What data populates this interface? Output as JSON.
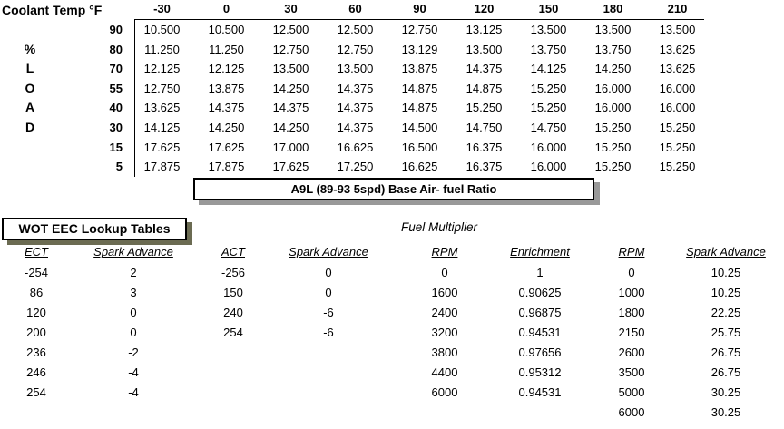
{
  "base_afr": {
    "corner_label": "Coolant Temp °F",
    "col_headers": [
      "-30",
      "0",
      "30",
      "60",
      "90",
      "120",
      "150",
      "180",
      "210"
    ],
    "row_labels": [
      "90",
      "80",
      "70",
      "55",
      "40",
      "30",
      "15",
      "5"
    ],
    "side_letters": [
      "%",
      "L",
      "O",
      "A",
      "D"
    ],
    "rows": [
      [
        "10.500",
        "10.500",
        "12.500",
        "12.500",
        "12.750",
        "13.125",
        "13.500",
        "13.500",
        "13.500"
      ],
      [
        "11.250",
        "11.250",
        "12.750",
        "12.750",
        "13.129",
        "13.500",
        "13.750",
        "13.750",
        "13.625"
      ],
      [
        "12.125",
        "12.125",
        "13.500",
        "13.500",
        "13.875",
        "14.375",
        "14.125",
        "14.250",
        "13.625"
      ],
      [
        "12.750",
        "13.875",
        "14.250",
        "14.375",
        "14.875",
        "14.875",
        "15.250",
        "16.000",
        "16.000"
      ],
      [
        "13.625",
        "14.375",
        "14.375",
        "14.375",
        "14.875",
        "15.250",
        "15.250",
        "16.000",
        "16.000"
      ],
      [
        "14.125",
        "14.250",
        "14.250",
        "14.375",
        "14.500",
        "14.750",
        "14.750",
        "15.250",
        "15.250"
      ],
      [
        "17.625",
        "17.625",
        "17.000",
        "16.625",
        "16.500",
        "16.375",
        "16.000",
        "15.250",
        "15.250"
      ],
      [
        "17.875",
        "17.875",
        "17.625",
        "17.250",
        "16.625",
        "16.375",
        "16.000",
        "15.250",
        "15.250"
      ]
    ],
    "caption": "A9L (89-93 5spd) Base Air- fuel Ratio"
  },
  "wot": {
    "title": "WOT EEC Lookup Tables",
    "fuel_multiplier_label": "Fuel Multiplier",
    "tables": [
      {
        "name": "ect-spark-advance",
        "headers": [
          "ECT",
          "Spark Advance"
        ],
        "rows": [
          [
            "-254",
            "2"
          ],
          [
            "86",
            "3"
          ],
          [
            "120",
            "0"
          ],
          [
            "200",
            "0"
          ],
          [
            "236",
            "-2"
          ],
          [
            "246",
            "-4"
          ],
          [
            "254",
            "-4"
          ]
        ]
      },
      {
        "name": "act-spark-advance",
        "headers": [
          "ACT",
          "Spark Advance"
        ],
        "rows": [
          [
            "-256",
            "0"
          ],
          [
            "150",
            "0"
          ],
          [
            "240",
            "-6"
          ],
          [
            "254",
            "-6"
          ]
        ]
      },
      {
        "name": "rpm-enrichment",
        "headers": [
          "RPM",
          "Enrichment"
        ],
        "rows": [
          [
            "0",
            "1"
          ],
          [
            "1600",
            "0.90625"
          ],
          [
            "2400",
            "0.96875"
          ],
          [
            "3200",
            "0.94531"
          ],
          [
            "3800",
            "0.97656"
          ],
          [
            "4400",
            "0.95312"
          ],
          [
            "6000",
            "0.94531"
          ]
        ]
      },
      {
        "name": "rpm-spark-advance",
        "headers": [
          "RPM",
          "Spark Advance"
        ],
        "rows": [
          [
            "0",
            "10.25"
          ],
          [
            "1000",
            "10.25"
          ],
          [
            "1800",
            "22.25"
          ],
          [
            "2150",
            "25.75"
          ],
          [
            "2600",
            "26.75"
          ],
          [
            "3500",
            "26.75"
          ],
          [
            "5000",
            "30.25"
          ],
          [
            "6000",
            "30.25"
          ]
        ]
      }
    ]
  },
  "colors": {
    "border": "#000000",
    "caption_shadow": "#999999",
    "wot_shadow": "#6b6b52",
    "background": "#ffffff",
    "text": "#000000"
  }
}
